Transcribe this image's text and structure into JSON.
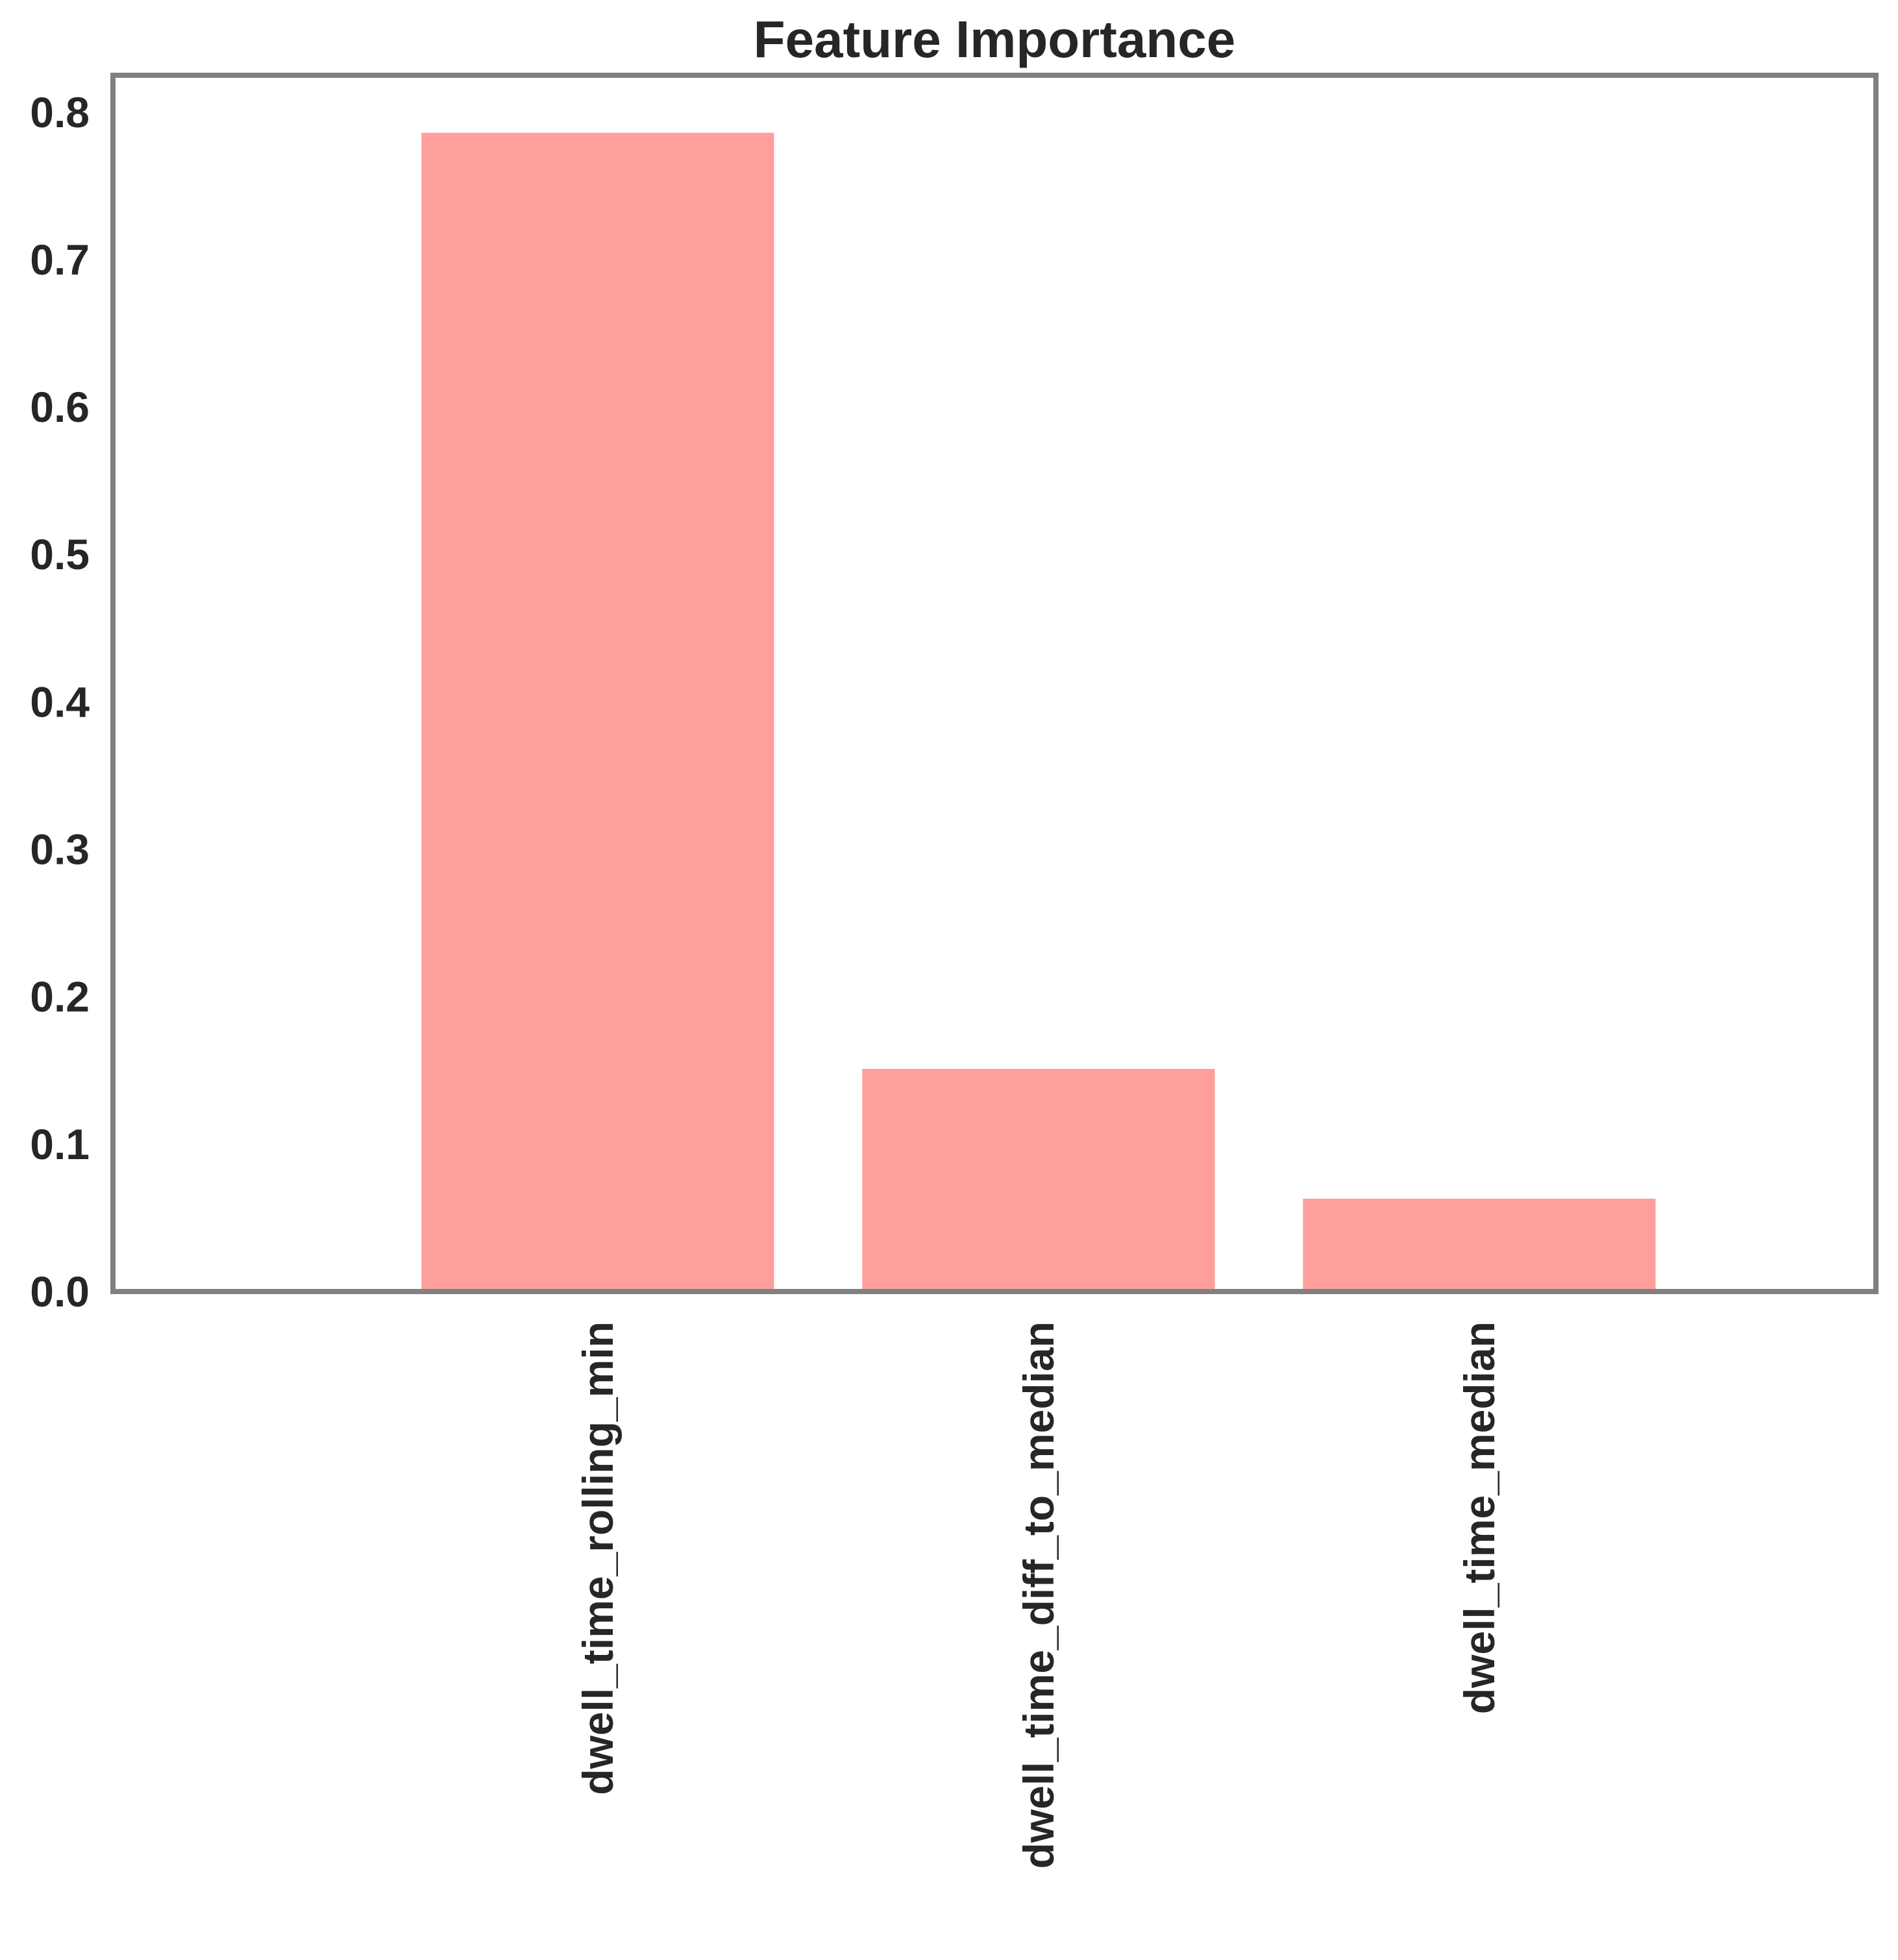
{
  "chart_data": {
    "type": "bar",
    "title": "Feature Importance",
    "xlabel": "",
    "ylabel": "",
    "categories": [
      "dwell_time_rolling_min",
      "dwell_time_diff_to_median",
      "dwell_time_median"
    ],
    "values": [
      0.786,
      0.151,
      0.063
    ],
    "ylim": [
      0,
      0.825
    ],
    "yticks": [
      "0.0",
      "0.1",
      "0.2",
      "0.3",
      "0.4",
      "0.5",
      "0.6",
      "0.7",
      "0.8"
    ],
    "xlim": [
      -1.1,
      2.9
    ],
    "grid": false,
    "legend": "none",
    "bar_color": "#ff9f9b",
    "frame_color": "#808080"
  }
}
